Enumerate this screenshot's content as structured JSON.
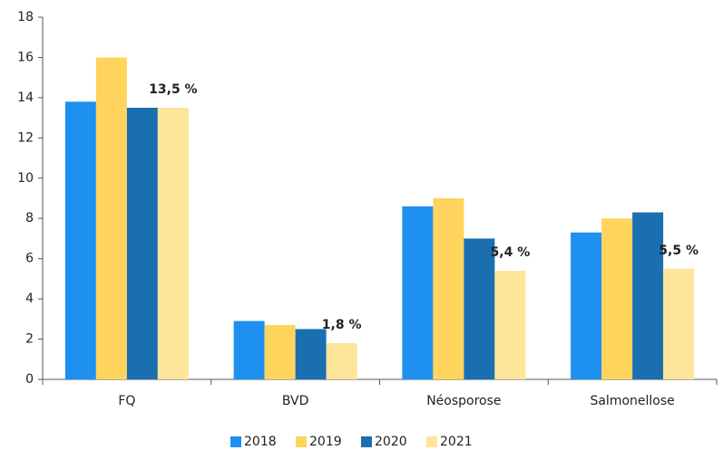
{
  "chart_data": {
    "type": "bar",
    "categories": [
      "FQ",
      "BVD",
      "Néosporose",
      "Salmonellose"
    ],
    "series": [
      {
        "name": "2018",
        "color": "#1e90f0",
        "values": [
          13.8,
          2.9,
          8.6,
          7.3
        ]
      },
      {
        "name": "2019",
        "color": "#ffd45c",
        "values": [
          16,
          2.7,
          9.0,
          8.0
        ]
      },
      {
        "name": "2020",
        "color": "#1a6fb0",
        "values": [
          13.5,
          2.5,
          7.0,
          8.3
        ]
      },
      {
        "name": "2021",
        "color": "#fde59a",
        "values": [
          13.5,
          1.8,
          5.4,
          5.5
        ],
        "value_labels": [
          "13,5 %",
          "1,8 %",
          "5,4 %",
          "5,5 %"
        ]
      }
    ],
    "ylim": [
      0,
      18
    ],
    "yticks": [
      0,
      2,
      4,
      6,
      8,
      10,
      12,
      14,
      16,
      18
    ],
    "grid": false,
    "legend": "bottom"
  }
}
